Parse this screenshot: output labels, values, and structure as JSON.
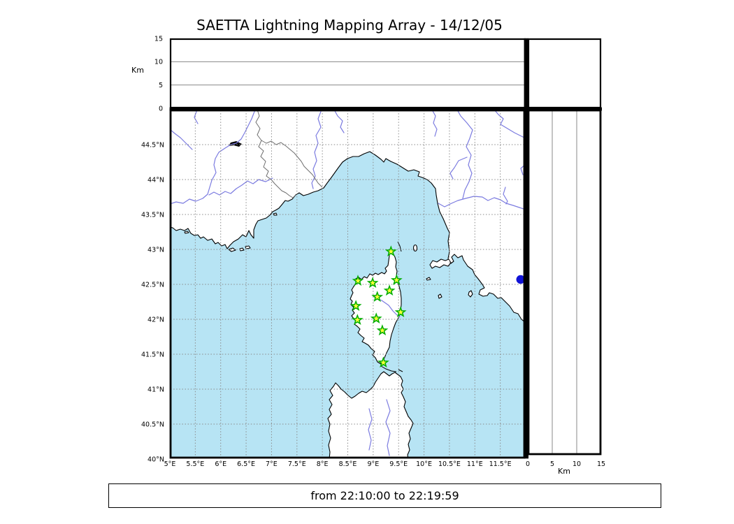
{
  "title": "SAETTA Lightning Mapping Array - 14/12/05",
  "footer": {
    "time_range": "from 22:10:00 to 22:19:59"
  },
  "colors": {
    "sea": "#b7e4f4",
    "land": "#ffffff",
    "coast": "#000000",
    "river": "#7b7be0",
    "border": "#6e6e6e",
    "lake": "#000000",
    "station_fill": "#ffff38",
    "station_stroke": "#00ad00",
    "detection": "#1113d6"
  },
  "altitude_axis": {
    "label": "Km",
    "ticks": [
      0,
      5,
      10,
      15
    ],
    "range_km": [
      0,
      15
    ],
    "gridlines_km": [
      5,
      10
    ]
  },
  "map_axes": {
    "lon_range_deg_e": [
      5,
      12
    ],
    "lat_range_deg_n": [
      40,
      45
    ],
    "grid_step_deg": 0.5,
    "lon_tick_labels": [
      "5°E",
      "5.5°E",
      "6°E",
      "6.5°E",
      "7°E",
      "7.5°E",
      "8°E",
      "8.5°E",
      "9°E",
      "9.5°E",
      "10°E",
      "10.5°E",
      "11°E",
      "11.5°E"
    ],
    "lat_tick_labels": [
      "44.5°N",
      "44°N",
      "43.5°N",
      "43°N",
      "42.5°N",
      "42°N",
      "41.5°N",
      "41°N",
      "40.5°N",
      "40°N"
    ]
  },
  "chart_data": {
    "type": "scatter",
    "title": "SAETTA Lightning Mapping Array - 14/12/05",
    "time_window": "from 22:10:00 to 22:19:59",
    "panels": [
      "longitude-altitude (top, Km 0-15)",
      "map lon 5-12E lat 40-45N",
      "latitude-altitude (right, Km 0-15)"
    ],
    "stations_lon_lat": [
      [
        9.35,
        42.97
      ],
      [
        8.7,
        42.55
      ],
      [
        8.99,
        42.52
      ],
      [
        9.46,
        42.56
      ],
      [
        9.32,
        42.41
      ],
      [
        9.08,
        42.32
      ],
      [
        8.66,
        42.19
      ],
      [
        9.54,
        42.1
      ],
      [
        8.69,
        41.99
      ],
      [
        9.06,
        42.01
      ],
      [
        9.18,
        41.84
      ],
      [
        9.2,
        41.38
      ]
    ],
    "detections": [
      {
        "lon": 11.9,
        "lat": 42.57,
        "alt_km": 0
      }
    ]
  }
}
